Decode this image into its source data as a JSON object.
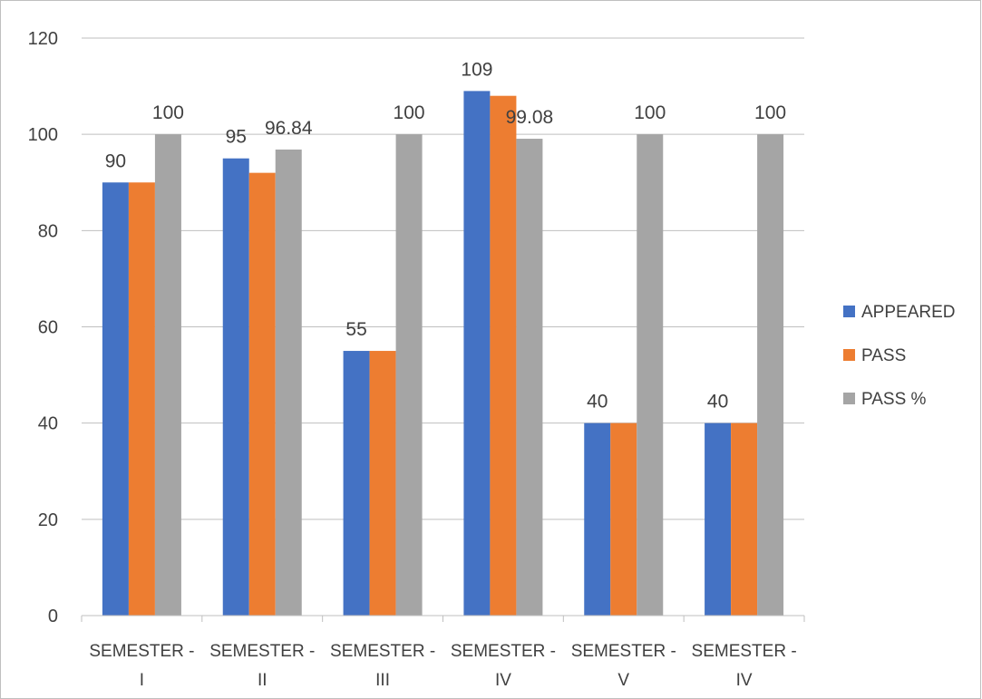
{
  "chart_data": {
    "type": "bar",
    "title": "",
    "xlabel": "",
    "ylabel": "",
    "ylim": [
      0,
      120
    ],
    "yticks": [
      0,
      20,
      40,
      60,
      80,
      100,
      120
    ],
    "grid": true,
    "legend_position": "right",
    "categories": [
      [
        "SEMESTER -",
        "I"
      ],
      [
        "SEMESTER -",
        "II"
      ],
      [
        "SEMESTER -",
        "III"
      ],
      [
        "SEMESTER -",
        "IV"
      ],
      [
        "SEMESTER -",
        "V"
      ],
      [
        "SEMESTER -",
        "IV"
      ]
    ],
    "series": [
      {
        "name": "APPEARED",
        "color": "#4472C4",
        "values": [
          90,
          95,
          55,
          109,
          40,
          40
        ]
      },
      {
        "name": "PASS",
        "color": "#ED7D31",
        "values": [
          90,
          92,
          55,
          108,
          40,
          40
        ]
      },
      {
        "name": "PASS %",
        "color": "#A5A5A5",
        "values": [
          100,
          96.84,
          100,
          99.08,
          100,
          100
        ]
      }
    ],
    "data_labels": [
      {
        "category": 0,
        "series": 0,
        "text": "90"
      },
      {
        "category": 0,
        "series": 2,
        "text": "100"
      },
      {
        "category": 1,
        "series": 0,
        "text": "95"
      },
      {
        "category": 1,
        "series": 2,
        "text": "96.84"
      },
      {
        "category": 2,
        "series": 0,
        "text": "55"
      },
      {
        "category": 2,
        "series": 2,
        "text": "100"
      },
      {
        "category": 3,
        "series": 0,
        "text": "109"
      },
      {
        "category": 3,
        "series": 2,
        "text": "99.08"
      },
      {
        "category": 4,
        "series": 0,
        "text": "40"
      },
      {
        "category": 4,
        "series": 2,
        "text": "100"
      },
      {
        "category": 5,
        "series": 0,
        "text": "40"
      },
      {
        "category": 5,
        "series": 2,
        "text": "100"
      }
    ]
  }
}
